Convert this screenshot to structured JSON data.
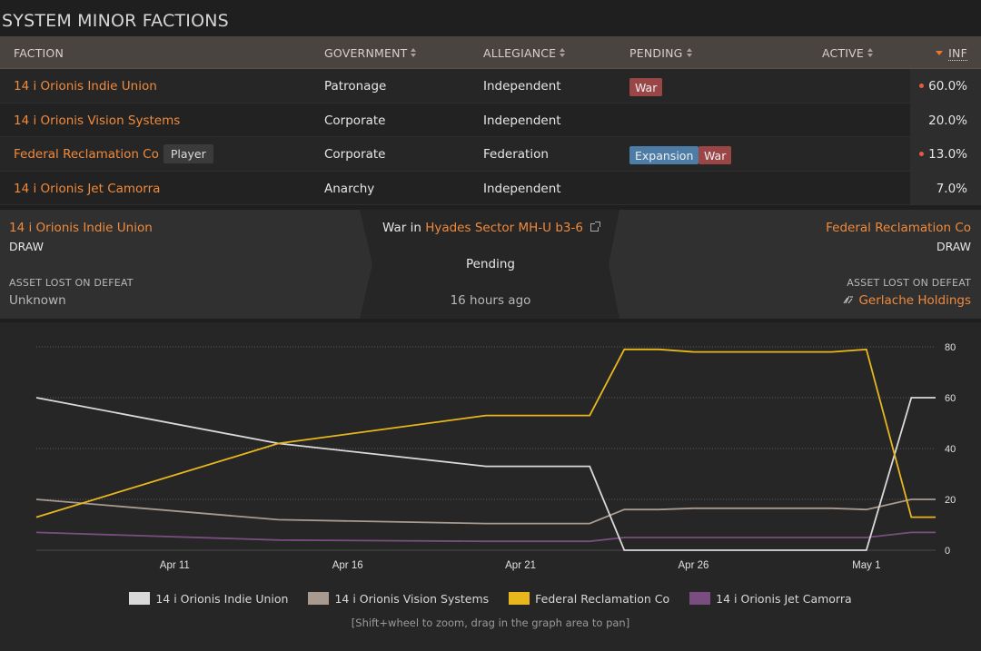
{
  "page": {
    "title": "SYSTEM MINOR FACTIONS"
  },
  "table": {
    "headers": {
      "faction": "FACTION",
      "government": "GOVERNMENT",
      "allegiance": "ALLEGIANCE",
      "pending": "PENDING",
      "active": "ACTIVE",
      "inf": "INF"
    },
    "rows": [
      {
        "faction": "14 i Orionis Indie Union",
        "government": "Patronage",
        "allegiance": "Independent",
        "pending": [
          "War"
        ],
        "inf": "60.0%",
        "trend": true
      },
      {
        "faction": "14 i Orionis Vision Systems",
        "government": "Corporate",
        "allegiance": "Independent",
        "pending": [],
        "inf": "20.0%",
        "trend": false
      },
      {
        "faction": "Federal Reclamation Co",
        "player_tag": "Player",
        "government": "Corporate",
        "allegiance": "Federation",
        "pending": [
          "Expansion",
          "War"
        ],
        "inf": "13.0%",
        "trend": true
      },
      {
        "faction": "14 i Orionis Jet Camorra",
        "government": "Anarchy",
        "allegiance": "Independent",
        "pending": [],
        "inf": "7.0%",
        "trend": false
      }
    ]
  },
  "conflict": {
    "left": {
      "faction": "14 i Orionis Indie Union",
      "result": "DRAW",
      "asset_label": "ASSET LOST ON DEFEAT",
      "asset": "Unknown"
    },
    "middle": {
      "prefix": "War in ",
      "location": "Hyades Sector MH-U b3-6",
      "status": "Pending",
      "time": "16 hours ago"
    },
    "right": {
      "faction": "Federal Reclamation Co",
      "result": "DRAW",
      "asset_label": "ASSET LOST ON DEFEAT",
      "asset": "Gerlache Holdings"
    }
  },
  "chart_data": {
    "type": "line",
    "x_ticks": [
      "Apr 11",
      "Apr 16",
      "Apr 21",
      "Apr 26",
      "May 1"
    ],
    "y_ticks": [
      0,
      20,
      40,
      60,
      80
    ],
    "ylim": [
      0,
      80
    ],
    "xlim_days": [
      "Apr 7",
      "May 3"
    ],
    "x": [
      "Apr 7",
      "Apr 14",
      "Apr 20",
      "Apr 23",
      "Apr 24",
      "Apr 25",
      "Apr 26",
      "Apr 27",
      "Apr 28",
      "Apr 29",
      "Apr 30",
      "May 1",
      "May 2",
      "May 3"
    ],
    "series": [
      {
        "name": "14 i Orionis Indie Union",
        "color": "#d9d9d9",
        "values": [
          60,
          42,
          33,
          33,
          0,
          0,
          0,
          0,
          0,
          0,
          0,
          0,
          60,
          60
        ]
      },
      {
        "name": "14 i Orionis Vision Systems",
        "color": "#a99a90",
        "values": [
          20,
          12,
          10.5,
          10.5,
          16,
          16,
          16.5,
          16.5,
          16.5,
          16.5,
          16.5,
          16,
          20,
          20
        ]
      },
      {
        "name": "Federal Reclamation Co",
        "color": "#e8b71e",
        "values": [
          13,
          42,
          53,
          53,
          79,
          79,
          78,
          78,
          78,
          78,
          78,
          79,
          13,
          13
        ]
      },
      {
        "name": "14 i Orionis Jet Camorra",
        "color": "#7a4d80",
        "values": [
          7,
          4,
          3.5,
          3.5,
          5,
          5,
          5,
          5,
          5,
          5,
          5,
          5,
          7,
          7
        ]
      }
    ],
    "hint": "[Shift+wheel to zoom, drag in the graph area to pan]"
  }
}
